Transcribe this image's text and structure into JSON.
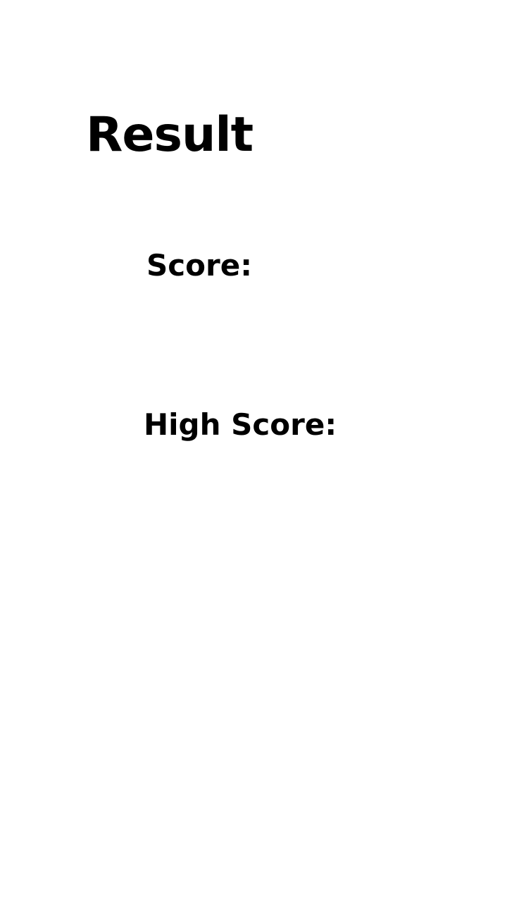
{
  "screen": {
    "title": "Result",
    "score_label": "Score:",
    "high_score_label": "High Score:"
  },
  "colors": {
    "background": "#ffffff",
    "text": "#000000"
  }
}
